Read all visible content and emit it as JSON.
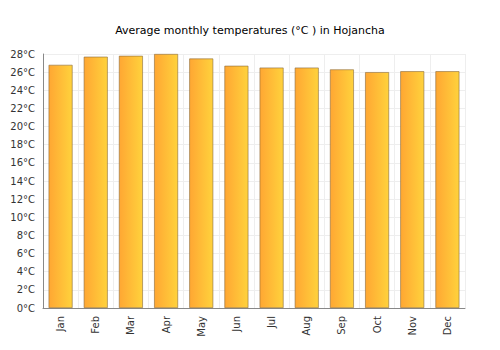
{
  "chart_data": {
    "type": "bar",
    "title": "Average monthly temperatures (°C ) in Hojancha",
    "categories": [
      "Jan",
      "Feb",
      "Mar",
      "Apr",
      "May",
      "Jun",
      "Jul",
      "Aug",
      "Sep",
      "Oct",
      "Nov",
      "Dec"
    ],
    "values": [
      26.8,
      27.7,
      27.8,
      28.0,
      27.5,
      26.7,
      26.5,
      26.5,
      26.3,
      26.0,
      26.1,
      26.1
    ],
    "color": "#ffa733",
    "ylim": [
      0,
      28
    ],
    "yticks": [
      {
        "value": 0,
        "label": "0°C"
      },
      {
        "value": 2,
        "label": "2°C"
      },
      {
        "value": 4,
        "label": "4°C"
      },
      {
        "value": 6,
        "label": "6°C"
      },
      {
        "value": 8,
        "label": "8°C"
      },
      {
        "value": 10,
        "label": "10°C"
      },
      {
        "value": 12,
        "label": "12°C"
      },
      {
        "value": 14,
        "label": "14°C"
      },
      {
        "value": 16,
        "label": "16°C"
      },
      {
        "value": 18,
        "label": "18°C"
      },
      {
        "value": 20,
        "label": "20°C"
      },
      {
        "value": 22,
        "label": "22°C"
      },
      {
        "value": 24,
        "label": "24°C"
      },
      {
        "value": 26,
        "label": "26°C"
      },
      {
        "value": 28,
        "label": "28°C"
      }
    ],
    "grid": true
  }
}
